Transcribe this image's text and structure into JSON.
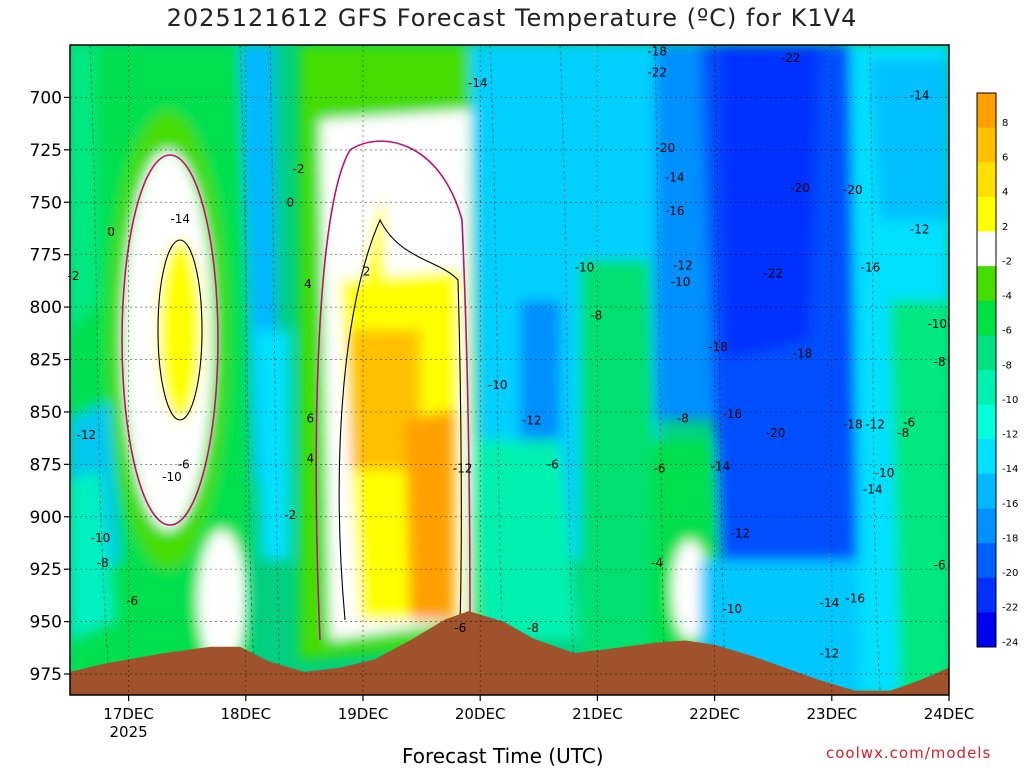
{
  "title": "2025121612 GFS Forecast Temperature (ºC) for K1V4",
  "xlabel": "Forecast Time (UTC)",
  "credit": "coolwx.com/models",
  "chart_data": {
    "type": "heatmap",
    "title": "2025121612 GFS Forecast Temperature (ºC) for K1V4",
    "xlabel": "Forecast Time (UTC)",
    "ylabel": "",
    "y_ticks": [
      700,
      725,
      750,
      775,
      800,
      825,
      850,
      875,
      900,
      925,
      950,
      975
    ],
    "ylim": [
      985,
      675
    ],
    "x_ticks": [
      "17DEC",
      "18DEC",
      "19DEC",
      "20DEC",
      "21DEC",
      "22DEC",
      "23DEC",
      "24DEC"
    ],
    "x_ticks_sub": [
      "2025",
      "",
      "",
      "",
      "",
      "",
      "",
      ""
    ],
    "xlim_days": [
      16.5,
      24.0
    ],
    "grid": true,
    "colorbar": {
      "ticks": [
        8,
        6,
        4,
        2,
        -2,
        -4,
        -6,
        -8,
        -10,
        -12,
        -14,
        -16,
        -18,
        -20,
        -22,
        -24
      ],
      "colors": [
        "#ffa000",
        "#ffc000",
        "#ffe000",
        "#ffff00",
        "#ffffff",
        "#44dd00",
        "#00e040",
        "#00e080",
        "#00f0b0",
        "#00ffd8",
        "#00e0ff",
        "#00b8ff",
        "#0090ff",
        "#0060ff",
        "#0030ff",
        "#0000f0"
      ]
    },
    "contour_labels": [
      {
        "t": "0",
        "day": 16.85,
        "p": 766
      },
      {
        "t": "-2",
        "day": 16.53,
        "p": 787
      },
      {
        "t": "-12",
        "day": 16.64,
        "p": 863
      },
      {
        "t": "-10",
        "day": 16.76,
        "p": 912
      },
      {
        "t": "-8",
        "day": 16.78,
        "p": 924
      },
      {
        "t": "-6",
        "day": 17.03,
        "p": 942
      },
      {
        "t": "-14",
        "day": 17.44,
        "p": 760
      },
      {
        "t": "-10",
        "day": 17.37,
        "p": 883
      },
      {
        "t": "-6",
        "day": 17.47,
        "p": 877
      },
      {
        "t": "-2",
        "day": 18.45,
        "p": 736
      },
      {
        "t": "0",
        "day": 18.38,
        "p": 752
      },
      {
        "t": "4",
        "day": 18.53,
        "p": 791
      },
      {
        "t": "2",
        "day": 19.03,
        "p": 785
      },
      {
        "t": "6",
        "day": 18.55,
        "p": 855
      },
      {
        "t": "4",
        "day": 18.55,
        "p": 874
      },
      {
        "t": "-2",
        "day": 18.38,
        "p": 901
      },
      {
        "t": "-14",
        "day": 19.98,
        "p": 695
      },
      {
        "t": "-12",
        "day": 19.85,
        "p": 879
      },
      {
        "t": "-10",
        "day": 20.15,
        "p": 839
      },
      {
        "t": "-12",
        "day": 20.44,
        "p": 856
      },
      {
        "t": "-6",
        "day": 19.83,
        "p": 955
      },
      {
        "t": "-8",
        "day": 20.45,
        "p": 955
      },
      {
        "t": "-10",
        "day": 20.89,
        "p": 783
      },
      {
        "t": "-8",
        "day": 20.99,
        "p": 806
      },
      {
        "t": "-6",
        "day": 20.62,
        "p": 877
      },
      {
        "t": "-4",
        "day": 21.51,
        "p": 924
      },
      {
        "t": "-12",
        "day": 21.73,
        "p": 782
      },
      {
        "t": "-10",
        "day": 21.71,
        "p": 790
      },
      {
        "t": "-8",
        "day": 21.73,
        "p": 855
      },
      {
        "t": "-6",
        "day": 21.53,
        "p": 879
      },
      {
        "t": "-18",
        "day": 21.51,
        "p": 680
      },
      {
        "t": "-22",
        "day": 21.51,
        "p": 690
      },
      {
        "t": "-20",
        "day": 21.58,
        "p": 726
      },
      {
        "t": "-14",
        "day": 21.66,
        "p": 740
      },
      {
        "t": "-16",
        "day": 21.66,
        "p": 756
      },
      {
        "t": "-18",
        "day": 22.03,
        "p": 821
      },
      {
        "t": "-16",
        "day": 22.15,
        "p": 853
      },
      {
        "t": "-14",
        "day": 22.05,
        "p": 878
      },
      {
        "t": "-12",
        "day": 22.22,
        "p": 910
      },
      {
        "t": "-10",
        "day": 22.15,
        "p": 946
      },
      {
        "t": "-22",
        "day": 22.65,
        "p": 683
      },
      {
        "t": "-20",
        "day": 22.73,
        "p": 745
      },
      {
        "t": "-22",
        "day": 22.5,
        "p": 786
      },
      {
        "t": "-18",
        "day": 22.75,
        "p": 824
      },
      {
        "t": "-20",
        "day": 22.52,
        "p": 862
      },
      {
        "t": "-20",
        "day": 23.18,
        "p": 746
      },
      {
        "t": "-18",
        "day": 23.18,
        "p": 858
      },
      {
        "t": "-12",
        "day": 23.37,
        "p": 858
      },
      {
        "t": "-14",
        "day": 23.35,
        "p": 889
      },
      {
        "t": "-10",
        "day": 23.45,
        "p": 881
      },
      {
        "t": "-16",
        "day": 23.2,
        "p": 941
      },
      {
        "t": "-14",
        "day": 22.98,
        "p": 943
      },
      {
        "t": "-12",
        "day": 22.98,
        "p": 967
      },
      {
        "t": "-16",
        "day": 23.33,
        "p": 783
      },
      {
        "t": "-14",
        "day": 23.75,
        "p": 701
      },
      {
        "t": "-12",
        "day": 23.75,
        "p": 765
      },
      {
        "t": "-10",
        "day": 23.9,
        "p": 810
      },
      {
        "t": "-8",
        "day": 23.92,
        "p": 828
      },
      {
        "t": "-6",
        "day": 23.66,
        "p": 857
      },
      {
        "t": "-8",
        "day": 23.61,
        "p": 862
      },
      {
        "t": "-6",
        "day": 23.92,
        "p": 925
      }
    ],
    "terrain_surface_pressure": [
      [
        16.5,
        974
      ],
      [
        16.8,
        970
      ],
      [
        17.3,
        965
      ],
      [
        17.7,
        962
      ],
      [
        17.95,
        962
      ],
      [
        18.2,
        969
      ],
      [
        18.5,
        974
      ],
      [
        18.8,
        972
      ],
      [
        19.1,
        968
      ],
      [
        19.4,
        959
      ],
      [
        19.7,
        949
      ],
      [
        19.9,
        945
      ],
      [
        20.2,
        950
      ],
      [
        20.45,
        958
      ],
      [
        20.8,
        965
      ],
      [
        21.1,
        963
      ],
      [
        21.5,
        960
      ],
      [
        21.75,
        959
      ],
      [
        22.0,
        961
      ],
      [
        22.3,
        966
      ],
      [
        22.6,
        972
      ],
      [
        22.9,
        978
      ],
      [
        23.2,
        983
      ],
      [
        23.5,
        983
      ],
      [
        23.75,
        978
      ],
      [
        24.0,
        972
      ]
    ]
  }
}
